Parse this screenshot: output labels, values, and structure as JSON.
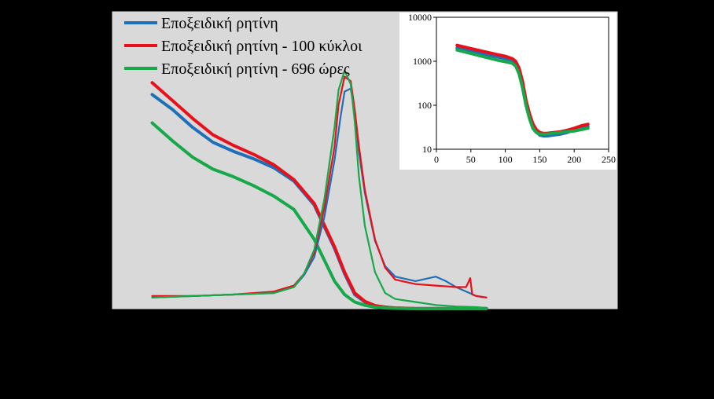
{
  "chart_data": {
    "type": "line",
    "colors": {
      "blue": "#1f6fb8",
      "red": "#e8101a",
      "green": "#17a84a",
      "plot_bg": "#d9d9d9",
      "frame": "#000000"
    },
    "legend": {
      "placement": "top-left",
      "entries": [
        "Εποξειδική ρητίνη",
        "Εποξειδική ρητίνη - 100 κύκλοι",
        "Εποξειδική ρητίνη - 696 ώρες"
      ]
    },
    "main": {
      "x_range": [
        -50,
        200
      ],
      "y_left_range": [
        0,
        10
      ],
      "y_right_range": [
        0,
        10
      ],
      "grid": false,
      "series": [
        {
          "name": "Εποξειδική ρητίνη",
          "color": "blue",
          "axis": "left",
          "x": [
            -30,
            -20,
            -10,
            0,
            10,
            20,
            30,
            40,
            50,
            60,
            65,
            70,
            75,
            80,
            85,
            90,
            100,
            110,
            120,
            135
          ],
          "values": [
            7.2,
            6.7,
            6.1,
            5.6,
            5.3,
            5.05,
            4.75,
            4.3,
            3.5,
            2.05,
            1.2,
            0.5,
            0.25,
            0.12,
            0.07,
            0.05,
            0.03,
            0.03,
            0.03,
            0.03
          ]
        },
        {
          "name": "Εποξειδική ρητίνη - 100 κύκλοι",
          "color": "red",
          "axis": "left",
          "x": [
            -30,
            -20,
            -10,
            0,
            10,
            20,
            30,
            40,
            50,
            60,
            65,
            70,
            75,
            80,
            85,
            90,
            100,
            110,
            120,
            135
          ],
          "values": [
            7.6,
            7.0,
            6.4,
            5.85,
            5.5,
            5.2,
            4.85,
            4.35,
            3.55,
            2.1,
            1.25,
            0.55,
            0.27,
            0.13,
            0.08,
            0.05,
            0.03,
            0.03,
            0.03,
            0.03
          ]
        },
        {
          "name": "Εποξειδική ρητίνη - 696 ώρες",
          "color": "green",
          "axis": "left",
          "x": [
            -30,
            -20,
            -10,
            0,
            10,
            20,
            30,
            40,
            50,
            60,
            65,
            70,
            75,
            80,
            85,
            90,
            100,
            110,
            120,
            135
          ],
          "values": [
            6.25,
            5.65,
            5.1,
            4.7,
            4.45,
            4.15,
            3.8,
            3.35,
            2.35,
            0.95,
            0.5,
            0.25,
            0.14,
            0.08,
            0.05,
            0.04,
            0.03,
            0.03,
            0.03,
            0.03
          ]
        },
        {
          "name": "Εποξειδική ρητίνη",
          "color": "blue",
          "axis": "right",
          "x": [
            -30,
            -10,
            10,
            30,
            40,
            45,
            50,
            55,
            60,
            63,
            65,
            68,
            70,
            72,
            75,
            80,
            85,
            90,
            100,
            110,
            115,
            120,
            130,
            135
          ],
          "values": [
            0.4,
            0.45,
            0.5,
            0.55,
            0.75,
            1.15,
            1.75,
            3.1,
            5.0,
            6.45,
            7.3,
            7.4,
            6.6,
            5.3,
            3.9,
            2.3,
            1.45,
            1.1,
            0.95,
            1.1,
            0.95,
            0.75,
            0.45,
            0.4
          ]
        },
        {
          "name": "Εποξειδική ρητίνη - 100 κύκλοι",
          "color": "red",
          "axis": "right",
          "x": [
            -30,
            -10,
            10,
            30,
            40,
            45,
            50,
            55,
            60,
            62,
            65,
            68,
            70,
            72,
            75,
            80,
            85,
            90,
            100,
            110,
            120,
            125,
            127,
            128,
            130,
            135
          ],
          "values": [
            0.45,
            0.45,
            0.5,
            0.6,
            0.8,
            1.2,
            1.9,
            3.4,
            5.45,
            6.85,
            7.8,
            7.65,
            6.7,
            5.5,
            4.0,
            2.35,
            1.4,
            1.0,
            0.85,
            0.8,
            0.75,
            0.75,
            1.05,
            0.5,
            0.45,
            0.4
          ]
        },
        {
          "name": "Εποξειδική ρητίνη - 696 ώρες",
          "color": "green",
          "axis": "right",
          "x": [
            -30,
            -10,
            10,
            30,
            40,
            45,
            50,
            55,
            60,
            62,
            65,
            68,
            70,
            72,
            75,
            80,
            85,
            90,
            100,
            110,
            120,
            130,
            135
          ],
          "values": [
            0.4,
            0.45,
            0.5,
            0.55,
            0.75,
            1.2,
            2.0,
            3.7,
            6.1,
            7.35,
            8.0,
            7.55,
            6.3,
            4.5,
            2.8,
            1.25,
            0.55,
            0.35,
            0.25,
            0.15,
            0.1,
            0.08,
            0.05
          ]
        }
      ]
    },
    "inset": {
      "y_scale": "log",
      "x_range": [
        0,
        250
      ],
      "y_range": [
        10,
        10000
      ],
      "x_ticks": [
        "0",
        "50",
        "100",
        "150",
        "200",
        "250"
      ],
      "y_ticks": [
        "10",
        "100",
        "1000",
        "10000"
      ],
      "grid": false,
      "series": [
        {
          "name": "Εποξειδική ρητίνη",
          "color": "blue",
          "x": [
            30,
            50,
            70,
            90,
            100,
            110,
            115,
            120,
            125,
            130,
            135,
            140,
            145,
            150,
            155,
            160,
            170,
            180,
            190,
            200,
            210,
            220
          ],
          "values": [
            2000,
            1700,
            1450,
            1250,
            1150,
            1050,
            900,
            600,
            300,
            120,
            60,
            35,
            25,
            21,
            20,
            20,
            21,
            22,
            24,
            28,
            31,
            33
          ]
        },
        {
          "name": "Εποξειδική ρητίνη - 100 κύκλοι",
          "color": "red",
          "x": [
            30,
            50,
            70,
            90,
            100,
            110,
            115,
            120,
            125,
            130,
            135,
            140,
            145,
            150,
            155,
            160,
            170,
            180,
            190,
            200,
            210,
            220
          ],
          "values": [
            2300,
            1950,
            1650,
            1400,
            1300,
            1150,
            1000,
            700,
            350,
            130,
            65,
            38,
            28,
            24,
            23,
            23,
            24,
            25,
            27,
            30,
            34,
            37
          ]
        },
        {
          "name": "Εποξειδική ρητίνη - 696 ώρες",
          "color": "green",
          "x": [
            30,
            50,
            70,
            90,
            100,
            110,
            115,
            120,
            125,
            130,
            135,
            140,
            145,
            150,
            155,
            160,
            170,
            180,
            190,
            200,
            210,
            220
          ],
          "values": [
            1800,
            1500,
            1250,
            1050,
            980,
            900,
            780,
            520,
            250,
            100,
            50,
            30,
            24,
            22,
            22,
            22,
            23,
            24,
            25,
            26,
            28,
            30
          ]
        }
      ]
    }
  }
}
